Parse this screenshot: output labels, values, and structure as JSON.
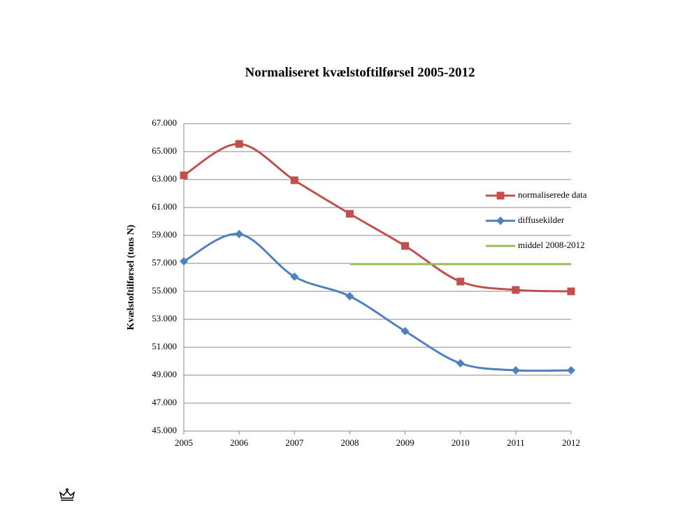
{
  "chart_data": {
    "type": "line",
    "title": "Normaliseret kvælstoftilførsel 2005-2012",
    "y_label": "Kvælstoftilførsel (tons N)",
    "x": [
      2005,
      2006,
      2007,
      2008,
      2009,
      2010,
      2011,
      2012
    ],
    "xlim": [
      2005,
      2012
    ],
    "xticks": [
      2005,
      2006,
      2007,
      2008,
      2009,
      2010,
      2011,
      2012
    ],
    "ylim": [
      45000,
      67000
    ],
    "yticks": [
      {
        "value": 45000,
        "label": "45.000"
      },
      {
        "value": 47000,
        "label": "47.000"
      },
      {
        "value": 49000,
        "label": "49.000"
      },
      {
        "value": 51000,
        "label": "51.000"
      },
      {
        "value": 53000,
        "label": "53.000"
      },
      {
        "value": 55000,
        "label": "55.000"
      },
      {
        "value": 57000,
        "label": "57.000"
      },
      {
        "value": 59000,
        "label": "59.000"
      },
      {
        "value": 61000,
        "label": "61.000"
      },
      {
        "value": 63000,
        "label": "63.000"
      },
      {
        "value": 65000,
        "label": "65.000"
      },
      {
        "value": 67000,
        "label": "67.000"
      }
    ],
    "grid": true,
    "legend": "right",
    "series": [
      {
        "name": "normaliserede data",
        "color": "#c0504d",
        "marker": "square",
        "smooth": true,
        "values": [
          63300,
          65550,
          62950,
          60550,
          58250,
          55700,
          55100,
          55000
        ]
      },
      {
        "name": "diffusekilder",
        "color": "#4f81bd",
        "marker": "diamond",
        "smooth": true,
        "values": [
          57150,
          59100,
          56050,
          54650,
          52150,
          49850,
          49350,
          49350
        ]
      },
      {
        "name": "middel 2008-2012",
        "color": "#9bbb59",
        "marker": "none",
        "smooth": false,
        "values": [
          null,
          null,
          null,
          56950,
          56950,
          56950,
          56950,
          56950
        ]
      }
    ]
  }
}
